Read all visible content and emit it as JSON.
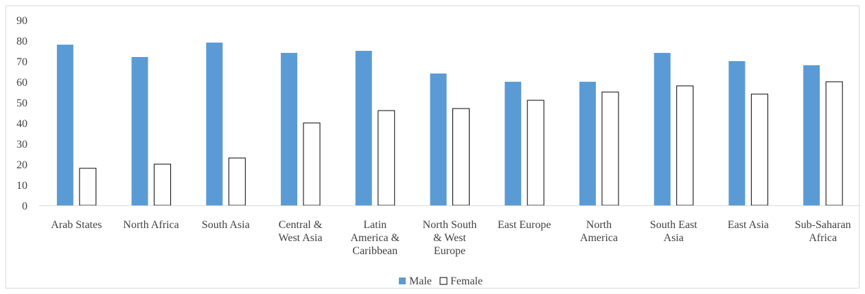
{
  "chart_data": {
    "type": "bar",
    "categories": [
      [
        "Arab States"
      ],
      [
        "North Africa"
      ],
      [
        "South Asia"
      ],
      [
        "Central &",
        "West Asia"
      ],
      [
        "Latin",
        "America &",
        "Caribbean"
      ],
      [
        "North South",
        "& West",
        "Europe"
      ],
      [
        "East Europe"
      ],
      [
        "North",
        "America"
      ],
      [
        "South East",
        "Asia"
      ],
      [
        "East Asia"
      ],
      [
        "Sub-Saharan",
        "Africa"
      ]
    ],
    "series": [
      {
        "name": "Male",
        "color": "#5b9bd5",
        "values": [
          78,
          72,
          79,
          74,
          75,
          64,
          60,
          60,
          74,
          70,
          68
        ]
      },
      {
        "name": "Female",
        "color": "#ffffff",
        "stroke": "#000000",
        "values": [
          18,
          20,
          23,
          40,
          46,
          47,
          51,
          55,
          58,
          54,
          60
        ]
      }
    ],
    "y_ticks": [
      "0",
      "10",
      "20",
      "30",
      "40",
      "50",
      "60",
      "70",
      "80",
      "90"
    ],
    "ylim": [
      0,
      90
    ],
    "legend_position": "bottom",
    "grid": false,
    "title": "",
    "xlabel": "",
    "ylabel": ""
  }
}
